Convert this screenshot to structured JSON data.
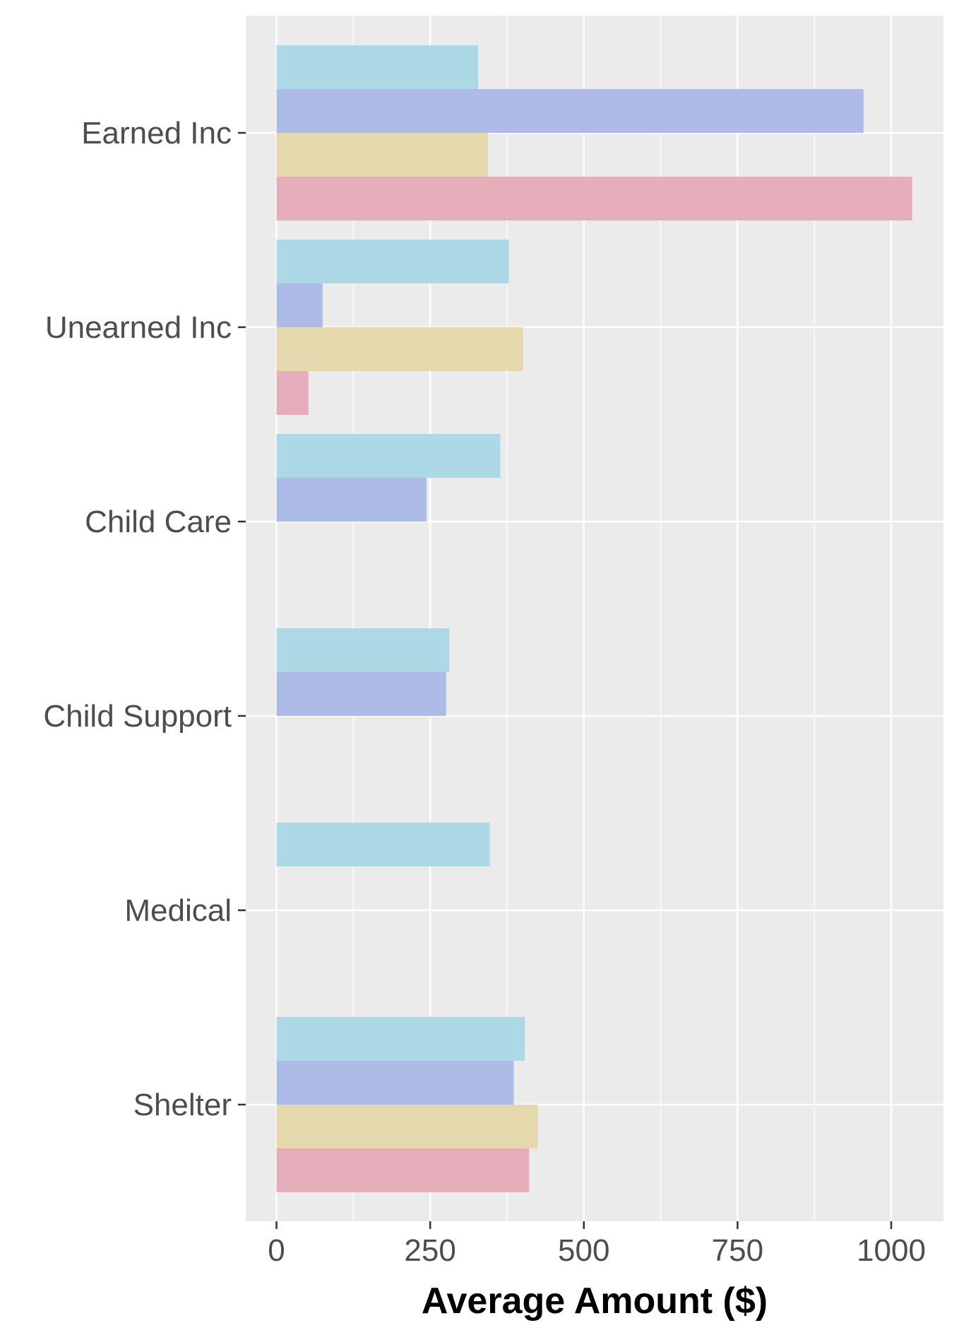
{
  "chart_data": {
    "type": "bar",
    "orientation": "horizontal",
    "xlabel": "Average Amount ($)",
    "ylabel": "",
    "xlim": [
      -50,
      1085
    ],
    "xticks": [
      0,
      250,
      500,
      750,
      1000
    ],
    "xtick_labels": [
      "0",
      "250",
      "500",
      "750",
      "1000"
    ],
    "categories": [
      "Earned Inc",
      "Unearned Inc",
      "Child Care",
      "Child Support",
      "Medical",
      "Shelter"
    ],
    "grid": true,
    "legend": "none",
    "series": [
      {
        "color": "#add8e6",
        "values": [
          328,
          378,
          364,
          281,
          347,
          404
        ]
      },
      {
        "color": "#adbbe6",
        "values": [
          955,
          75,
          244,
          276,
          null,
          386
        ]
      },
      {
        "color": "#e6d8ad",
        "values": [
          344,
          401,
          null,
          null,
          null,
          425
        ]
      },
      {
        "color": "#e6adbb",
        "values": [
          1034,
          52,
          null,
          null,
          null,
          411
        ]
      }
    ],
    "panel_background": "#ebebeb",
    "grid_color": "#ffffff"
  }
}
